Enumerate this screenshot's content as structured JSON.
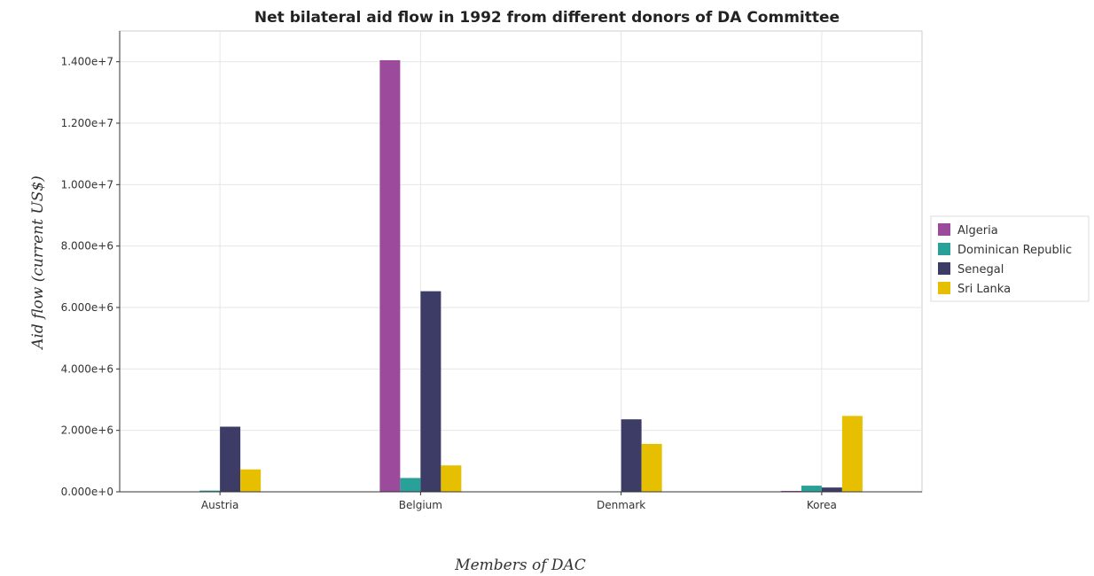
{
  "chart_data": {
    "type": "bar",
    "title": "Net bilateral aid flow in 1992 from different donors of DA Committee",
    "xlabel": "Members of DAC",
    "ylabel": "Aid flow (current US$)",
    "categories": [
      "Austria",
      "Belgium",
      "Denmark",
      "Korea"
    ],
    "ylim": [
      0,
      15000000
    ],
    "yticks": [
      0,
      2000000,
      4000000,
      6000000,
      8000000,
      10000000,
      12000000,
      14000000
    ],
    "ytick_labels": [
      "0.000e+0",
      "2.000e+6",
      "4.000e+6",
      "6.000e+6",
      "8.000e+6",
      "1.000e+7",
      "1.200e+7",
      "1.400e+7"
    ],
    "grid": true,
    "legend_position": "right",
    "series": [
      {
        "name": "Algeria",
        "color": "#9b4a9c",
        "values": [
          0,
          14050000,
          0,
          30000
        ]
      },
      {
        "name": "Dominican Republic",
        "color": "#2aa198",
        "values": [
          40000,
          450000,
          10000,
          200000
        ]
      },
      {
        "name": "Senegal",
        "color": "#3c3c66",
        "values": [
          2120000,
          6530000,
          2360000,
          140000
        ]
      },
      {
        "name": "Sri Lanka",
        "color": "#e6c000",
        "values": [
          730000,
          860000,
          1560000,
          2470000
        ]
      }
    ]
  }
}
